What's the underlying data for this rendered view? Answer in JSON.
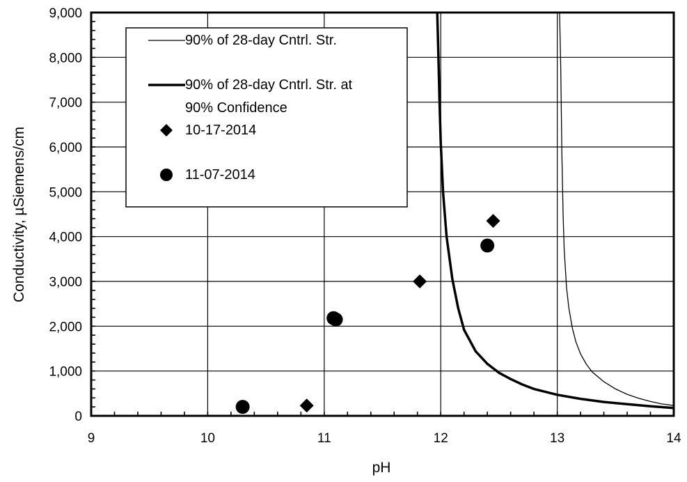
{
  "chart_data": {
    "type": "scatter",
    "title": "",
    "xlabel": "pH",
    "ylabel": "Conductivity, µSiemens/cm",
    "xlim": [
      9,
      14
    ],
    "ylim": [
      0,
      9000
    ],
    "x_ticks": [
      9,
      10,
      11,
      12,
      13,
      14
    ],
    "x_tick_labels": [
      "9",
      "10",
      "11",
      "12",
      "13",
      "14"
    ],
    "y_ticks": [
      0,
      1000,
      2000,
      3000,
      4000,
      5000,
      6000,
      7000,
      8000,
      9000
    ],
    "y_tick_labels": [
      "0",
      "1,000",
      "2,000",
      "3,000",
      "4,000",
      "5,000",
      "6,000",
      "7,000",
      "8,000",
      "9,000"
    ],
    "grid": true,
    "legend_position": "top-left",
    "series": [
      {
        "name": "90% of 28-day Cntrl. Str.",
        "type": "line",
        "style": "thin",
        "color": "#000000",
        "x": [
          13.02,
          13.03,
          13.04,
          13.05,
          13.06,
          13.08,
          13.1,
          13.13,
          13.16,
          13.2,
          13.25,
          13.3,
          13.4,
          13.5,
          13.6,
          13.7,
          13.8,
          13.9,
          14.0
        ],
        "y": [
          9000,
          7800,
          5800,
          4500,
          3700,
          2850,
          2400,
          1950,
          1650,
          1380,
          1150,
          980,
          760,
          600,
          480,
          390,
          320,
          265,
          230
        ]
      },
      {
        "name": "90% of 28-day Cntrl. Str. at 90% Confidence",
        "type": "line",
        "style": "thick",
        "color": "#000000",
        "x": [
          11.97,
          11.98,
          11.99,
          12.0,
          12.02,
          12.05,
          12.1,
          12.15,
          12.2,
          12.3,
          12.4,
          12.5,
          12.6,
          12.7,
          12.8,
          13.0,
          13.2,
          13.4,
          13.6,
          13.8,
          14.0
        ],
        "y": [
          9000,
          8000,
          7000,
          6100,
          5000,
          4000,
          3050,
          2400,
          1920,
          1440,
          1160,
          960,
          820,
          700,
          600,
          470,
          380,
          310,
          260,
          215,
          175
        ]
      },
      {
        "name": "10-17-2014",
        "type": "scatter",
        "marker": "diamond",
        "color": "#000000",
        "x": [
          10.85,
          11.82,
          12.45
        ],
        "y": [
          230,
          3000,
          4350
        ]
      },
      {
        "name": "11-07-2014",
        "type": "scatter",
        "marker": "circle",
        "color": "#000000",
        "x": [
          10.3,
          11.08,
          11.1,
          12.4
        ],
        "y": [
          200,
          2180,
          2150,
          3800
        ]
      }
    ],
    "legend": {
      "entries": [
        {
          "lines": [
            "90% of 28-day Cntrl. Str."
          ],
          "symbol": "thin-line"
        },
        {
          "lines": [
            "90% of 28-day Cntrl. Str. at",
            "90% Confidence"
          ],
          "symbol": "thick-line"
        },
        {
          "lines": [
            "10-17-2014"
          ],
          "symbol": "diamond"
        },
        {
          "lines": [
            "11-07-2014"
          ],
          "symbol": "circle"
        }
      ]
    }
  }
}
